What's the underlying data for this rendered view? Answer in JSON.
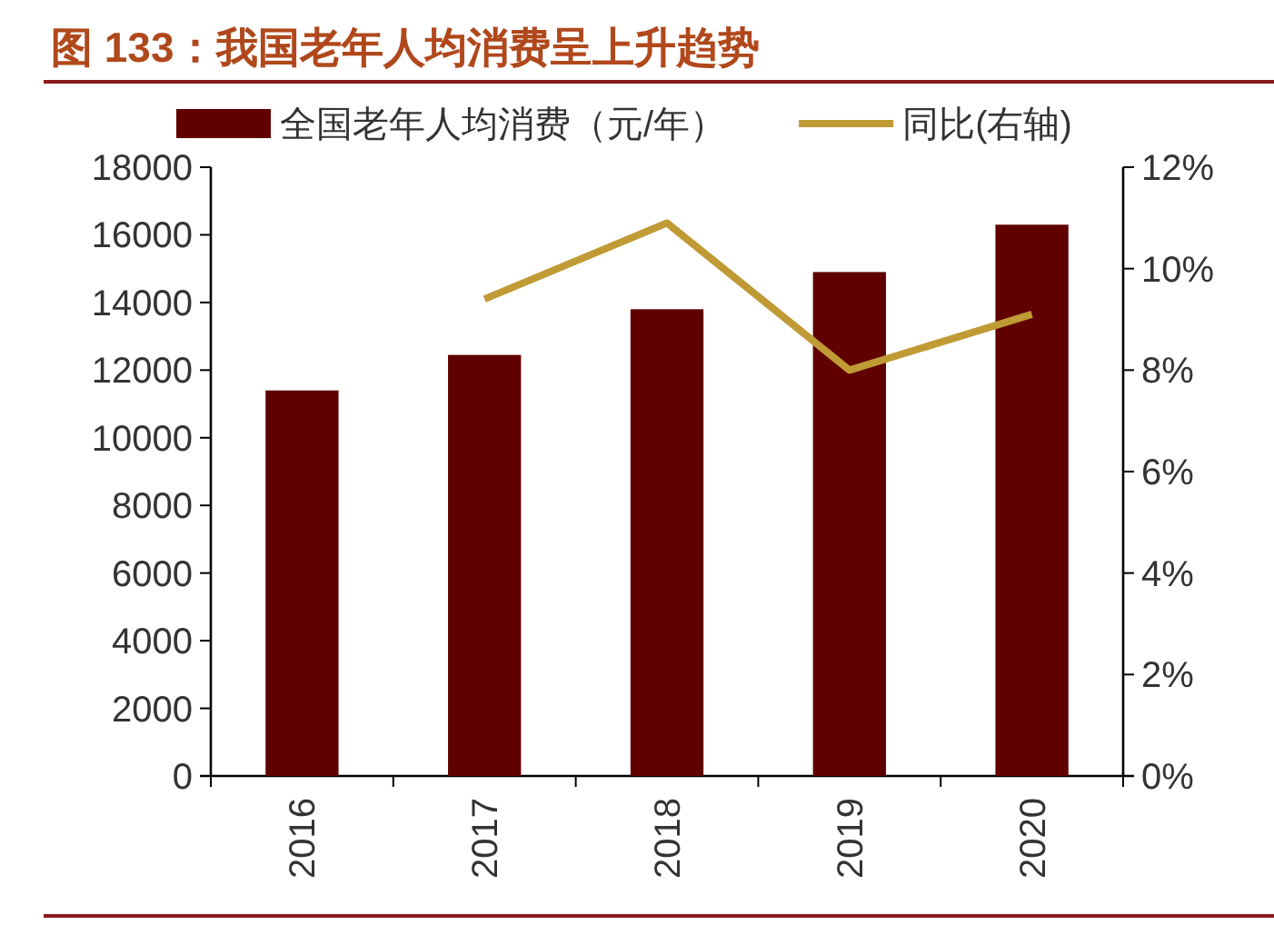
{
  "chart_data": {
    "type": "bar",
    "title": "图 133：我国老年人均消费呈上升趋势",
    "categories": [
      "2016",
      "2017",
      "2018",
      "2019",
      "2020"
    ],
    "series": [
      {
        "name": "全国老年人均消费（元/年）",
        "color": "#600000",
        "values": [
          11400,
          12450,
          13800,
          14900,
          16300
        ]
      },
      {
        "name": "同比(右轴)",
        "type": "line",
        "axis": "y2",
        "color": "#c09a35",
        "values": [
          null,
          9.4,
          10.9,
          8.0,
          9.1
        ]
      }
    ],
    "ylim": [
      0,
      18000
    ],
    "yticks": [
      0,
      2000,
      4000,
      6000,
      8000,
      10000,
      12000,
      14000,
      16000,
      18000
    ],
    "y2lim": [
      0,
      12
    ],
    "y2ticks": [
      {
        "value": 0,
        "label": "0%"
      },
      {
        "value": 2,
        "label": "2%"
      },
      {
        "value": 4,
        "label": "4%"
      },
      {
        "value": 6,
        "label": "6%"
      },
      {
        "value": 8,
        "label": "8%"
      },
      {
        "value": 10,
        "label": "10%"
      },
      {
        "value": 12,
        "label": "12%"
      }
    ],
    "legend": "top",
    "grid": false
  }
}
